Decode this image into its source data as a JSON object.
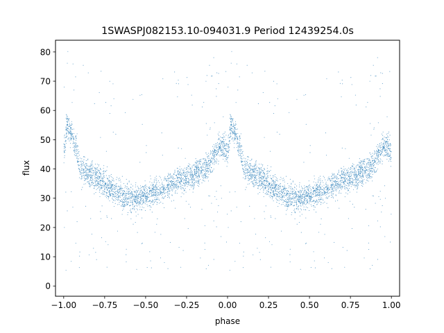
{
  "chart_data": {
    "type": "scatter",
    "title": "1SWASPJ082153.10-094031.9 Period 12439254.0s",
    "xlabel": "phase",
    "ylabel": "flux",
    "xlim": [
      -1.05,
      1.05
    ],
    "ylim": [
      -3.5,
      84
    ],
    "xticks": [
      -1.0,
      -0.75,
      -0.5,
      -0.25,
      0.0,
      0.25,
      0.5,
      0.75,
      1.0
    ],
    "xtick_labels": [
      "−1.00",
      "−0.75",
      "−0.50",
      "−0.25",
      "0.00",
      "0.25",
      "0.50",
      "0.75",
      "1.00"
    ],
    "yticks": [
      0,
      10,
      20,
      30,
      40,
      50,
      60,
      70,
      80
    ],
    "ytick_labels": [
      "0",
      "10",
      "20",
      "30",
      "40",
      "50",
      "60",
      "70",
      "80"
    ],
    "grid": false,
    "marker": "small dot",
    "color": "#1f77b4",
    "phase_profile": {
      "phase": [
        0.0,
        0.02,
        0.05,
        0.08,
        0.1,
        0.14,
        0.2,
        0.25,
        0.3,
        0.35,
        0.4,
        0.45,
        0.5,
        0.55,
        0.6,
        0.65,
        0.7,
        0.75,
        0.8,
        0.85,
        0.9,
        0.92,
        0.95,
        0.98
      ],
      "flux": [
        46,
        55,
        52,
        47,
        40,
        39,
        37,
        35,
        33,
        31,
        30,
        30,
        31,
        32,
        33,
        35,
        36,
        37,
        38,
        40,
        42,
        45,
        48,
        47
      ]
    }
  }
}
